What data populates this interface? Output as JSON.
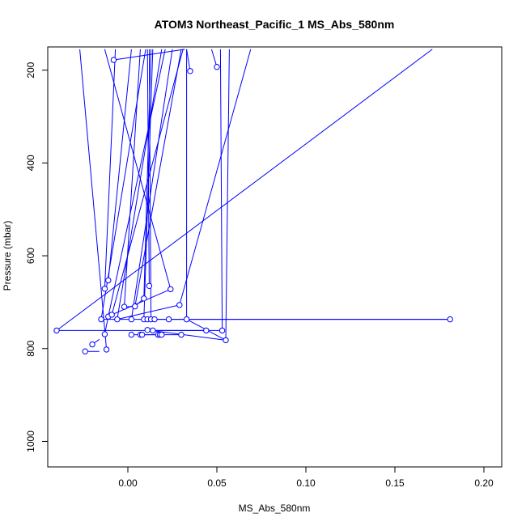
{
  "chart_data": {
    "type": "scatter",
    "title": "ATOM3 Northeast_Pacific_1 MS_Abs_580nm",
    "xlabel": "MS_Abs_580nm",
    "ylabel": "Pressure (mbar)",
    "xlim": [
      -0.045,
      0.21
    ],
    "ylim": [
      1055,
      150
    ],
    "y_reversed": true,
    "x_ticks": [
      0.0,
      0.05,
      0.1,
      0.15,
      0.2
    ],
    "x_tick_labels": [
      "0.00",
      "0.05",
      "0.10",
      "0.15",
      "0.20"
    ],
    "y_ticks": [
      200,
      400,
      600,
      800,
      1000
    ],
    "y_tick_labels": [
      "200",
      "400",
      "600",
      "800",
      "1000"
    ],
    "grid": false,
    "series_color": "#0000ff",
    "marker": "open-circle",
    "points": [
      {
        "x": -0.008,
        "y": 178
      },
      {
        "x": 0.05,
        "y": 193
      },
      {
        "x": 0.035,
        "y": 202
      },
      {
        "x": 0.024,
        "y": 672
      },
      {
        "x": -0.011,
        "y": 653
      },
      {
        "x": 0.012,
        "y": 665
      },
      {
        "x": -0.013,
        "y": 671
      },
      {
        "x": 0.029,
        "y": 706
      },
      {
        "x": 0.009,
        "y": 692
      },
      {
        "x": -0.002,
        "y": 710
      },
      {
        "x": 0.004,
        "y": 709
      },
      {
        "x": -0.011,
        "y": 731
      },
      {
        "x": -0.009,
        "y": 727
      },
      {
        "x": -0.015,
        "y": 737
      },
      {
        "x": -0.006,
        "y": 737
      },
      {
        "x": 0.002,
        "y": 737
      },
      {
        "x": 0.009,
        "y": 737
      },
      {
        "x": 0.011,
        "y": 737
      },
      {
        "x": 0.013,
        "y": 737
      },
      {
        "x": 0.015,
        "y": 737
      },
      {
        "x": 0.023,
        "y": 737
      },
      {
        "x": 0.033,
        "y": 737
      },
      {
        "x": 0.181,
        "y": 737
      },
      {
        "x": -0.04,
        "y": 761
      },
      {
        "x": 0.011,
        "y": 760
      },
      {
        "x": 0.014,
        "y": 761
      },
      {
        "x": 0.044,
        "y": 761
      },
      {
        "x": 0.053,
        "y": 761
      },
      {
        "x": -0.013,
        "y": 769
      },
      {
        "x": 0.002,
        "y": 770
      },
      {
        "x": 0.007,
        "y": 770
      },
      {
        "x": 0.008,
        "y": 770
      },
      {
        "x": 0.017,
        "y": 770
      },
      {
        "x": 0.018,
        "y": 770
      },
      {
        "x": 0.019,
        "y": 770
      },
      {
        "x": 0.03,
        "y": 770
      },
      {
        "x": 0.055,
        "y": 782
      },
      {
        "x": -0.02,
        "y": 791
      },
      {
        "x": -0.012,
        "y": 802
      },
      {
        "x": -0.024,
        "y": 806
      }
    ],
    "segments": [
      [
        [
          -0.008,
          178
        ],
        [
          0.032,
          155
        ]
      ],
      [
        [
          0.05,
          193
        ],
        [
          0.047,
          155
        ]
      ],
      [
        [
          0.035,
          202
        ],
        [
          0.033,
          155
        ]
      ],
      [
        [
          0.024,
          672
        ],
        [
          -0.013,
          155
        ]
      ],
      [
        [
          -0.011,
          653
        ],
        [
          0.002,
          155
        ]
      ],
      [
        [
          0.012,
          665
        ],
        [
          0.011,
          155
        ]
      ],
      [
        [
          -0.013,
          671
        ],
        [
          -0.007,
          155
        ]
      ],
      [
        [
          0.029,
          706
        ],
        [
          0.069,
          155
        ]
      ],
      [
        [
          0.009,
          692
        ],
        [
          0.013,
          155
        ]
      ],
      [
        [
          -0.002,
          710
        ],
        [
          0.007,
          155
        ]
      ],
      [
        [
          0.004,
          709
        ],
        [
          0.03,
          155
        ]
      ],
      [
        [
          -0.011,
          731
        ],
        [
          0.021,
          155
        ]
      ],
      [
        [
          -0.009,
          727
        ],
        [
          0.031,
          155
        ]
      ],
      [
        [
          -0.015,
          737
        ],
        [
          0.01,
          155
        ]
      ],
      [
        [
          -0.006,
          737
        ],
        [
          0.019,
          155
        ]
      ],
      [
        [
          0.002,
          737
        ],
        [
          0.025,
          155
        ]
      ],
      [
        [
          0.009,
          737
        ],
        [
          0.014,
          155
        ]
      ],
      [
        [
          0.013,
          737
        ],
        [
          0.012,
          155
        ]
      ],
      [
        [
          0.033,
          737
        ],
        [
          0.033,
          155
        ]
      ],
      [
        [
          -0.04,
          761
        ],
        [
          0.171,
          155
        ]
      ],
      [
        [
          -0.04,
          761
        ],
        [
          0.053,
          761
        ]
      ],
      [
        [
          0.053,
          761
        ],
        [
          0.052,
          155
        ]
      ],
      [
        [
          0.015,
          737
        ],
        [
          0.181,
          737
        ]
      ],
      [
        [
          -0.015,
          737
        ],
        [
          0.181,
          737
        ]
      ],
      [
        [
          0.011,
          760
        ],
        [
          0.055,
          782
        ]
      ],
      [
        [
          0.014,
          761
        ],
        [
          0.044,
          761
        ]
      ],
      [
        [
          0.002,
          770
        ],
        [
          0.03,
          770
        ]
      ],
      [
        [
          0.007,
          770
        ],
        [
          0.019,
          770
        ]
      ],
      [
        [
          -0.012,
          802
        ],
        [
          -0.027,
          155
        ]
      ],
      [
        [
          -0.024,
          806
        ],
        [
          -0.016,
          806
        ]
      ],
      [
        [
          -0.02,
          791
        ],
        [
          -0.016,
          780
        ]
      ],
      [
        [
          -0.013,
          769
        ],
        [
          -0.011,
          731
        ]
      ],
      [
        [
          -0.006,
          737
        ],
        [
          0.029,
          706
        ]
      ],
      [
        [
          -0.002,
          710
        ],
        [
          0.004,
          709
        ]
      ],
      [
        [
          0.009,
          692
        ],
        [
          0.004,
          709
        ]
      ],
      [
        [
          0.033,
          737
        ],
        [
          0.055,
          782
        ]
      ],
      [
        [
          0.055,
          782
        ],
        [
          0.057,
          155
        ]
      ],
      [
        [
          -0.009,
          727
        ],
        [
          0.024,
          672
        ]
      ]
    ]
  }
}
